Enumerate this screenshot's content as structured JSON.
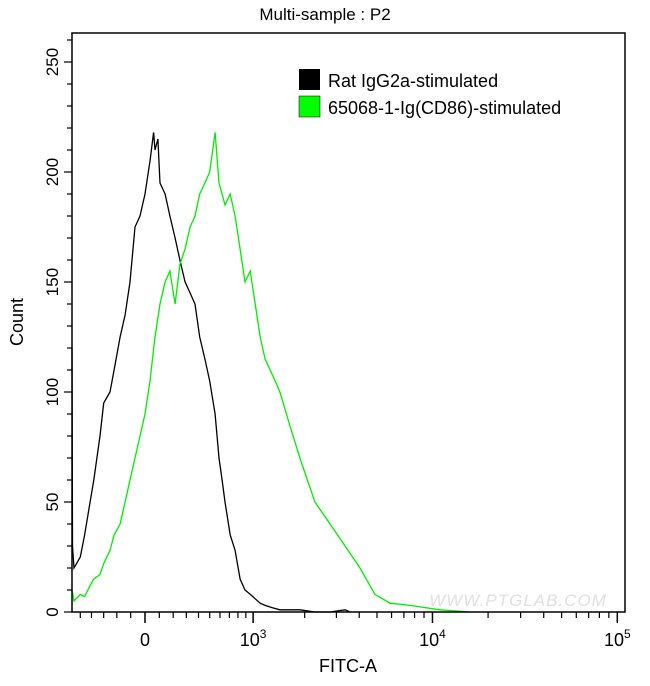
{
  "chart_data": {
    "type": "line",
    "title": "Multi-sample : P2",
    "xlabel": "FITC-A",
    "ylabel": "Count",
    "x_scale": "biexponential",
    "xlim": [
      -580,
      100000
    ],
    "ylim": [
      0,
      260
    ],
    "x_ticks": [
      {
        "value": 0,
        "base": "0",
        "exp": ""
      },
      {
        "value": 1000,
        "base": "10",
        "exp": "3"
      },
      {
        "value": 10000,
        "base": "10",
        "exp": "4"
      },
      {
        "value": 100000,
        "base": "10",
        "exp": "5"
      }
    ],
    "y_ticks": [
      0,
      50,
      100,
      150,
      200,
      250
    ],
    "grid": false,
    "legend_placement": "top-right",
    "watermark": "WWW.PTGLAB.COM",
    "series": [
      {
        "name": "Rat IgG2a-stimulated",
        "color": "#000000",
        "x": [
          -580,
          -575,
          -560,
          -500,
          -460,
          -412,
          -380,
          -329,
          -300,
          -251,
          -220,
          -176,
          -140,
          -105,
          -70,
          -35,
          0,
          35,
          60,
          70,
          90,
          105,
          141,
          176,
          214,
          250,
          290,
          330,
          370,
          410,
          456,
          500,
          551,
          590,
          622,
          653,
          709,
          766,
          826,
          889,
          960,
          1030,
          1105,
          1183,
          1300,
          1445,
          1646,
          1880,
          2282,
          2768,
          3348,
          3566
        ],
        "y": [
          120,
          30,
          20,
          25,
          35,
          50,
          60,
          80,
          95,
          100,
          110,
          125,
          135,
          150,
          175,
          180,
          190,
          205,
          218,
          210,
          215,
          195,
          190,
          180,
          170,
          160,
          150,
          145,
          140,
          125,
          115,
          105,
          90,
          70,
          60,
          50,
          35,
          28,
          15,
          10,
          8,
          6,
          4,
          3,
          2,
          1,
          1,
          1,
          0,
          0,
          1,
          0
        ]
      },
      {
        "name": "65068-1-Ig(CD86)-stimulated",
        "color": "#00ee00",
        "x": [
          -580,
          -560,
          -500,
          -460,
          -412,
          -380,
          -329,
          -300,
          -251,
          -220,
          -176,
          -140,
          -105,
          -70,
          -35,
          0,
          35,
          70,
          105,
          141,
          176,
          214,
          250,
          290,
          330,
          370,
          410,
          456,
          500,
          551,
          590,
          622,
          653,
          709,
          766,
          826,
          889,
          960,
          1030,
          1105,
          1183,
          1356,
          1445,
          1646,
          1880,
          2282,
          2768,
          3348,
          4040,
          4877,
          5887,
          7561,
          10990,
          15960
        ],
        "y": [
          10,
          5,
          8,
          7,
          12,
          15,
          17,
          22,
          28,
          35,
          40,
          50,
          60,
          70,
          80,
          90,
          105,
          125,
          140,
          150,
          155,
          140,
          158,
          165,
          175,
          180,
          190,
          195,
          200,
          218,
          195,
          190,
          185,
          190,
          180,
          165,
          150,
          155,
          140,
          125,
          115,
          105,
          100,
          85,
          70,
          50,
          40,
          30,
          20,
          8,
          4,
          3,
          1,
          0
        ]
      }
    ]
  }
}
